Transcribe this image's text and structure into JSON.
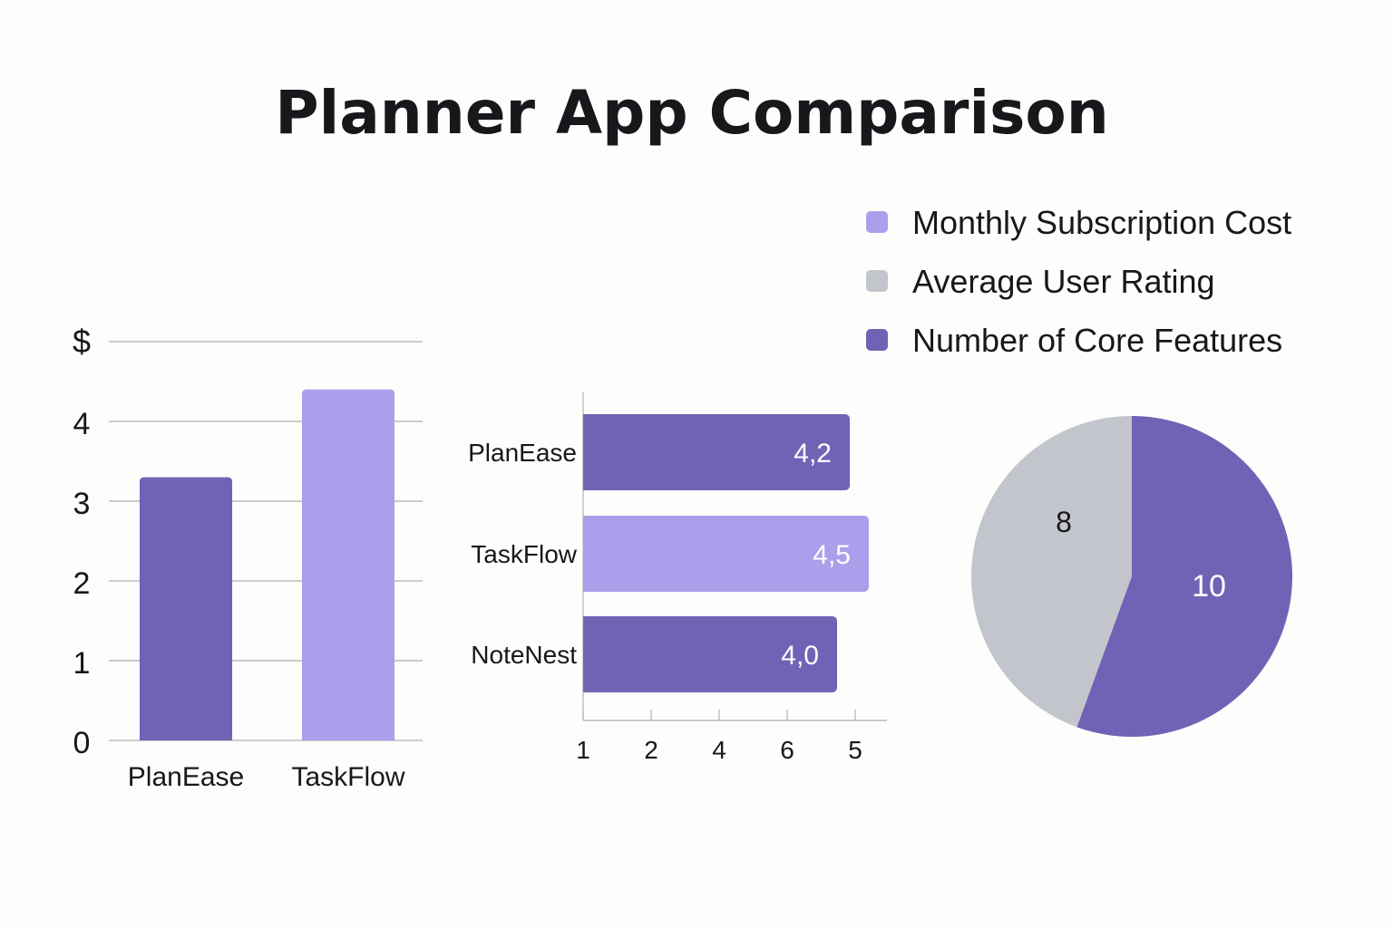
{
  "title": "Planner App Comparison",
  "legend": {
    "items": [
      {
        "label": "Monthly Subscription Cost",
        "color": "#ab9eea"
      },
      {
        "label": "Average User Rating",
        "color": "#c3c5cc"
      },
      {
        "label": "Number of Core Features",
        "color": "#7262b5"
      }
    ]
  },
  "chart_data": [
    {
      "type": "bar",
      "categories": [
        "PlanEase",
        "TaskFlow"
      ],
      "values": [
        3.3,
        4.4
      ],
      "colors": [
        "#7262b5",
        "#ab9eea"
      ],
      "ylabel": "$",
      "ylim": [
        0,
        4
      ],
      "yticks": [
        "0",
        "1",
        "2",
        "3",
        "4"
      ],
      "grid": true
    },
    {
      "type": "bar",
      "orientation": "horizontal",
      "categories": [
        "PlanEase",
        "TaskFlow",
        "NoteNest"
      ],
      "values": [
        4.2,
        4.5,
        4.0
      ],
      "data_labels": [
        "4,2",
        "4,5",
        "4,0"
      ],
      "colors": [
        "#7262b5",
        "#ab9eea",
        "#7262b5"
      ],
      "xticks": [
        "1",
        "2",
        "4",
        "6",
        "5"
      ]
    },
    {
      "type": "pie",
      "labels": [
        "8",
        "10"
      ],
      "values": [
        8,
        10
      ],
      "colors": [
        "#c3c5cc",
        "#7262b5"
      ]
    }
  ]
}
